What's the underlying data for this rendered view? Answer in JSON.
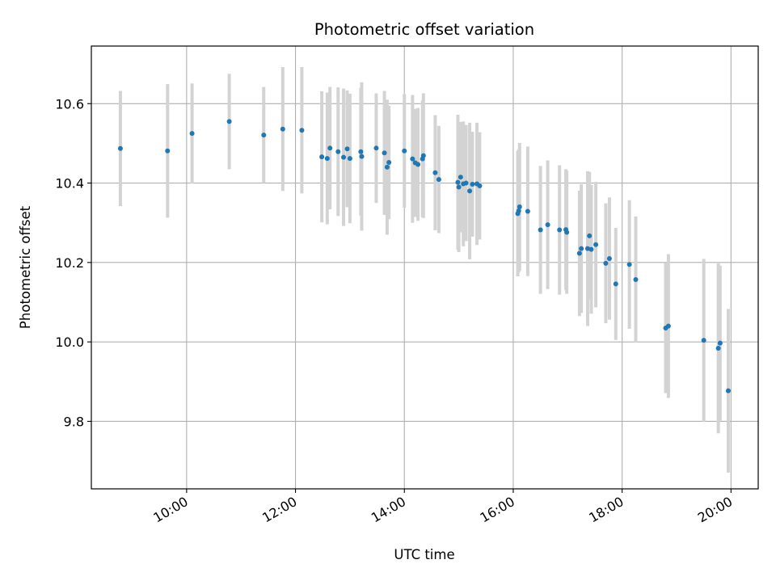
{
  "chart_data": {
    "type": "scatter",
    "title": "Photometric offset variation",
    "xlabel": "UTC time",
    "ylabel": "Photometric offset",
    "x_tick_labels": [
      "10:00",
      "12:00",
      "14:00",
      "16:00",
      "18:00",
      "20:00"
    ],
    "y_tick_labels": [
      "9.8",
      "10.0",
      "10.2",
      "10.4",
      "10.6"
    ],
    "xlim": [
      "08:15",
      "20:30"
    ],
    "ylim": [
      9.63,
      10.745
    ],
    "grid": true,
    "marker_color": "#1f77b4",
    "errorbar_color": "#d3d3d3",
    "series": [
      {
        "x": [
          "08:47",
          "09:39",
          "10:06",
          "10:47",
          "11:25",
          "11:46",
          "12:07",
          "12:29",
          "12:35",
          "12:38",
          "12:47",
          "12:53",
          "12:57",
          "13:00",
          "13:12",
          "13:13",
          "13:29",
          "13:38",
          "13:41",
          "13:43",
          "14:00",
          "14:09",
          "14:12",
          "14:15",
          "14:20",
          "14:21",
          "14:34",
          "14:38",
          "14:59",
          "15:00",
          "15:02",
          "15:05",
          "15:08",
          "15:12",
          "15:15",
          "15:20",
          "15:23",
          "16:06",
          "16:05",
          "16:07",
          "16:16",
          "16:30",
          "16:38",
          "16:51",
          "16:58",
          "16:59",
          "17:13",
          "17:15",
          "17:22",
          "17:24",
          "17:26",
          "17:31",
          "17:42",
          "17:46",
          "17:53",
          "18:08",
          "18:15",
          "18:48",
          "18:51",
          "19:30",
          "19:46",
          "19:48",
          "19:57"
        ],
        "y": [
          10.487,
          10.481,
          10.525,
          10.555,
          10.521,
          10.536,
          10.533,
          10.466,
          10.462,
          10.488,
          10.479,
          10.465,
          10.486,
          10.462,
          10.479,
          10.467,
          10.488,
          10.476,
          10.44,
          10.452,
          10.481,
          10.461,
          10.451,
          10.447,
          10.461,
          10.469,
          10.426,
          10.409,
          10.402,
          10.39,
          10.415,
          10.398,
          10.4,
          10.38,
          10.397,
          10.398,
          10.393,
          10.33,
          10.323,
          10.34,
          10.329,
          10.282,
          10.295,
          10.282,
          10.283,
          10.276,
          10.223,
          10.235,
          10.235,
          10.267,
          10.233,
          10.245,
          10.198,
          10.21,
          10.146,
          10.195,
          10.157,
          10.035,
          10.04,
          10.004,
          9.984,
          9.997,
          9.877
        ],
        "yerr": [
          0.145,
          0.168,
          0.126,
          0.12,
          0.121,
          0.156,
          0.159,
          0.165,
          0.166,
          0.154,
          0.162,
          0.173,
          0.147,
          0.163,
          0.161,
          0.187,
          0.138,
          0.156,
          0.17,
          0.143,
          0.143,
          0.161,
          0.136,
          0.142,
          0.147,
          0.157,
          0.145,
          0.135,
          0.17,
          0.164,
          0.139,
          0.157,
          0.146,
          0.172,
          0.132,
          0.154,
          0.135,
          0.155,
          0.158,
          0.161,
          0.163,
          0.161,
          0.162,
          0.163,
          0.152,
          0.155,
          0.158,
          0.162,
          0.195,
          0.161,
          0.162,
          0.158,
          0.151,
          0.154,
          0.141,
          0.162,
          0.159,
          0.164,
          0.181,
          0.205,
          0.214,
          0.195,
          0.206
        ]
      }
    ]
  }
}
